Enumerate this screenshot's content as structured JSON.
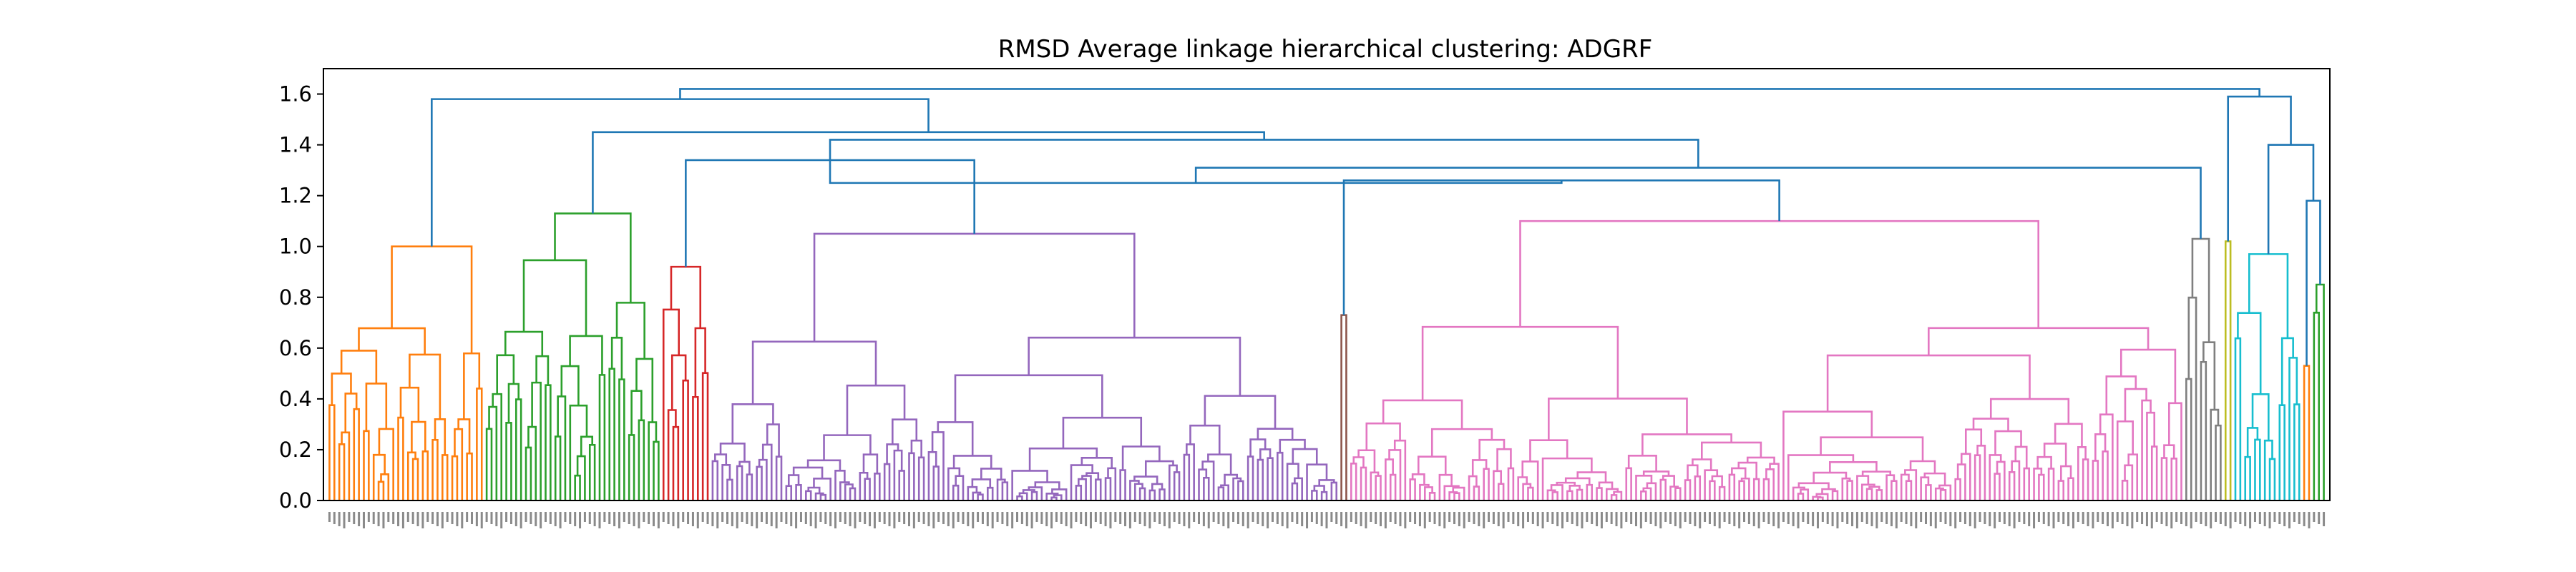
{
  "chart_data": {
    "type": "dendrogram",
    "title": "RMSD Average linkage hierarchical clustering: ADGRF",
    "xlabel": "",
    "ylabel": "",
    "ylim": [
      0,
      1.7
    ],
    "yticks": [
      0.0,
      0.2,
      0.4,
      0.6,
      0.8,
      1.0,
      1.2,
      1.4,
      1.6
    ],
    "ytick_labels": [
      "0.0",
      "0.2",
      "0.4",
      "0.6",
      "0.8",
      "1.0",
      "1.2",
      "1.4",
      "1.6"
    ],
    "leaf_labels_legible": false,
    "approx_leaf_count": 420,
    "grid": false,
    "above_threshold_color": "#1f77b4",
    "clusters": [
      {
        "color": "#ff7f0e",
        "height": 1.0,
        "leaves": 32
      },
      {
        "color": "#2ca02c",
        "height": 1.13,
        "leaves": 36
      },
      {
        "color": "#d62728",
        "height": 0.92,
        "leaves": 10
      },
      {
        "color": "#9467bd",
        "height": 1.05,
        "leaves": 128
      },
      {
        "color": "#8c564b",
        "height": 0.73,
        "leaves": 2
      },
      {
        "color": "#e377c2",
        "height": 1.1,
        "leaves": 170
      },
      {
        "color": "#7f7f7f",
        "height": 1.03,
        "leaves": 8
      },
      {
        "color": "#bcbd22",
        "height": 1.02,
        "leaves": 2
      },
      {
        "color": "#17becf",
        "height": 0.97,
        "leaves": 14
      },
      {
        "color": "#ff7f0e",
        "height": 0.53,
        "leaves": 2
      },
      {
        "color": "#2ca02c",
        "height": 0.85,
        "leaves": 3
      }
    ],
    "upper_merges": [
      {
        "height": 1.34,
        "joins": [
          "red",
          "purple"
        ]
      },
      {
        "height": 1.26,
        "joins": [
          "brown",
          "pink"
        ]
      },
      {
        "height": 1.25,
        "joins": [
          "purple-group",
          "brown-pink-group"
        ]
      },
      {
        "height": 1.31,
        "joins": [
          "gray",
          "main-group"
        ]
      },
      {
        "height": 1.42,
        "joins": [
          "red-purple",
          "pink-gray"
        ]
      },
      {
        "height": 1.45,
        "joins": [
          "green",
          "main-group"
        ]
      },
      {
        "height": 1.18,
        "joins": [
          "cyan-orange",
          "green-small"
        ]
      },
      {
        "height": 1.4,
        "joins": [
          "cyan-group",
          "right-group"
        ]
      },
      {
        "height": 1.59,
        "joins": [
          "olive",
          "right-group"
        ]
      },
      {
        "height": 1.58,
        "joins": [
          "orange",
          "green-main"
        ]
      },
      {
        "height": 1.62,
        "joins": [
          "left-group",
          "right-group"
        ]
      }
    ]
  }
}
